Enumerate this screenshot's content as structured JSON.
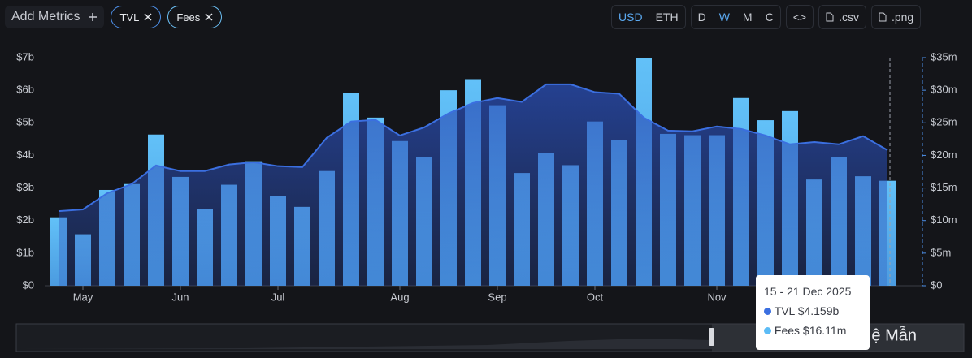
{
  "toolbar": {
    "add_metrics": "Add Metrics",
    "currencies": [
      "USD",
      "ETH"
    ],
    "periods": [
      "D",
      "W",
      "M",
      "C"
    ],
    "embed": "<>",
    "csv": ".csv",
    "png": ".png"
  },
  "chart_data": {
    "type": "combo",
    "categories": [
      null,
      "May",
      null,
      null,
      null,
      "Jun",
      null,
      null,
      null,
      "Jul",
      null,
      null,
      null,
      null,
      "Aug",
      null,
      null,
      null,
      "Sep",
      null,
      null,
      null,
      "Oct",
      null,
      null,
      null,
      null,
      "Nov",
      null,
      null,
      null,
      null,
      null,
      null,
      null
    ],
    "series": [
      {
        "name": "TVL",
        "type": "area",
        "color": "#3b6fe0",
        "axis": "y",
        "values": [
          2.29,
          2.34,
          2.84,
          3.12,
          3.69,
          3.52,
          3.52,
          3.72,
          3.79,
          3.67,
          3.64,
          4.54,
          5.04,
          5.09,
          4.61,
          4.86,
          5.29,
          5.61,
          5.76,
          5.64,
          6.18,
          6.18,
          5.94,
          5.89,
          5.16,
          4.76,
          4.74,
          4.89,
          4.81,
          4.61,
          4.34,
          4.41,
          4.34,
          4.59,
          4.159
        ]
      },
      {
        "name": "Fees",
        "type": "bar",
        "color": "#5cbcf6",
        "axis": "y2",
        "values": [
          10.5,
          7.9,
          14.7,
          15.6,
          23.2,
          16.7,
          11.8,
          15.5,
          19.1,
          13.8,
          12.1,
          17.6,
          29.6,
          25.8,
          22.2,
          19.7,
          30.0,
          31.7,
          27.7,
          17.3,
          20.4,
          18.5,
          25.2,
          22.4,
          34.9,
          23.3,
          23.1,
          23.1,
          28.8,
          25.4,
          26.8,
          16.3,
          19.7,
          16.8,
          16.11
        ]
      }
    ],
    "ylim": [
      0,
      7
    ],
    "yticks": [
      {
        "value": 0,
        "label": "$0"
      },
      {
        "value": 1,
        "label": "$1b"
      },
      {
        "value": 2,
        "label": "$2b"
      },
      {
        "value": 3,
        "label": "$3b"
      },
      {
        "value": 4,
        "label": "$4b"
      },
      {
        "value": 5,
        "label": "$5b"
      },
      {
        "value": 6,
        "label": "$6b"
      },
      {
        "value": 7,
        "label": "$7b"
      }
    ],
    "y2lim": [
      0,
      35
    ],
    "y2ticks": [
      {
        "value": 0,
        "label": "$0"
      },
      {
        "value": 5,
        "label": "$5m"
      },
      {
        "value": 10,
        "label": "$10m"
      },
      {
        "value": 15,
        "label": "$15m"
      },
      {
        "value": 20,
        "label": "$20m"
      },
      {
        "value": 25,
        "label": "$25m"
      },
      {
        "value": 30,
        "label": "$30m"
      },
      {
        "value": 35,
        "label": "$35m"
      }
    ],
    "tooltip": {
      "date": "15 - 21 Dec 2025",
      "tvl": "$4.159b",
      "fees": "$16.11m"
    }
  },
  "watermark": "@ Tuệ Mẫn"
}
